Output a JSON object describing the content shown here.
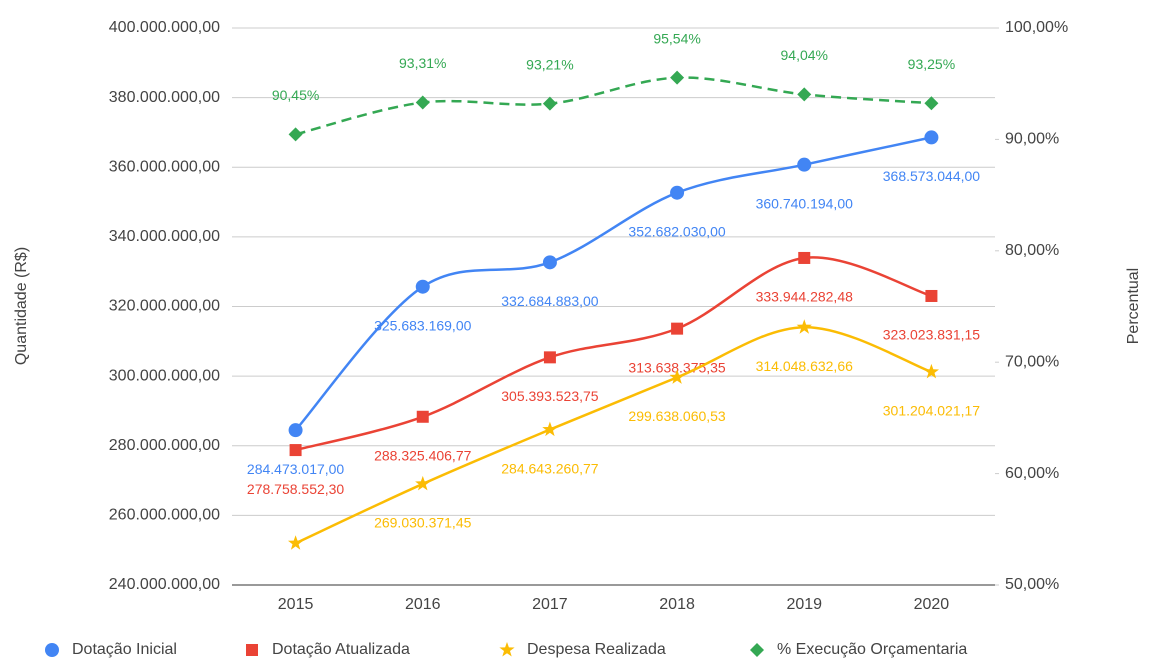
{
  "chart_data": {
    "type": "line",
    "categories": [
      "2015",
      "2016",
      "2017",
      "2018",
      "2019",
      "2020"
    ],
    "ylabel": "Quantidade (R$)",
    "y2label": "Percentual",
    "ylim": [
      240000000,
      400000000
    ],
    "yticks": [
      {
        "value": 240000000,
        "label": "240.000.000,00"
      },
      {
        "value": 260000000,
        "label": "260.000.000,00"
      },
      {
        "value": 280000000,
        "label": "280.000.000,00"
      },
      {
        "value": 300000000,
        "label": "300.000.000,00"
      },
      {
        "value": 320000000,
        "label": "320.000.000,00"
      },
      {
        "value": 340000000,
        "label": "340.000.000,00"
      },
      {
        "value": 360000000,
        "label": "360.000.000,00"
      },
      {
        "value": 380000000,
        "label": "380.000.000,00"
      },
      {
        "value": 400000000,
        "label": "400.000.000,00"
      }
    ],
    "y2lim": [
      50,
      100
    ],
    "y2ticks": [
      {
        "value": 50,
        "label": "50,00%"
      },
      {
        "value": 60,
        "label": "60,00%"
      },
      {
        "value": 70,
        "label": "70,00%"
      },
      {
        "value": 80,
        "label": "80,00%"
      },
      {
        "value": 90,
        "label": "90,00%"
      },
      {
        "value": 100,
        "label": "100,00%"
      }
    ],
    "grid": true,
    "legend": "bottom",
    "series": [
      {
        "name": "Dotação Inicial",
        "color": "#4285f4",
        "marker": "circle",
        "values": [
          284473017.0,
          325683169.0,
          332684883.0,
          352682030.0,
          360740194.0,
          368573044.0
        ],
        "value_labels": [
          "284.473.017,00",
          "325.683.169,00",
          "332.684.883,00",
          "352.682.030,00",
          "360.740.194,00",
          "368.573.044,00"
        ]
      },
      {
        "name": "Dotação Atualizada",
        "color": "#ea4335",
        "marker": "square",
        "values": [
          278758552.3,
          288325406.77,
          305393523.75,
          313638375.35,
          333944282.48,
          323023831.15
        ],
        "value_labels": [
          "278.758.552,30",
          "288.325.406,77",
          "305.393.523,75",
          "313.638.375,35",
          "333.944.282,48",
          "323.023.831,15"
        ]
      },
      {
        "name": "Despesa Realizada",
        "color": "#fbbc04",
        "marker": "star",
        "values": [
          252000000,
          269030371.45,
          284643260.77,
          299638060.53,
          314048632.66,
          301204021.17
        ],
        "value_labels": [
          null,
          "269.030.371,45",
          "284.643.260,77",
          "299.638.060,53",
          "314.048.632,66",
          "301.204.021,17"
        ]
      },
      {
        "name": "% Execução Orçamentaria",
        "color": "#34a853",
        "marker": "diamond",
        "axis": "y2",
        "dashed": true,
        "values": [
          90.45,
          93.31,
          93.21,
          95.54,
          94.04,
          93.25
        ],
        "value_labels": [
          "90,45%",
          "93,31%",
          "93,21%",
          "95,54%",
          "94,04%",
          "93,25%"
        ]
      }
    ]
  }
}
